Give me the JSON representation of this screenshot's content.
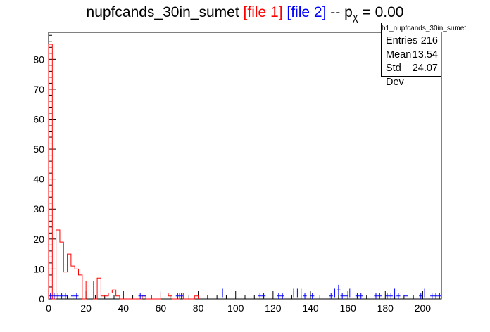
{
  "title": {
    "main": "nupfcands_30in_sumet",
    "file1": "[file 1]",
    "file2": "[file 2]",
    "suffix": "-- p",
    "sub": "χ",
    "value": "= 0.00"
  },
  "stats": {
    "name": "h1_nupfcands_30in_sumet",
    "entries_label": "Entries",
    "entries": "216",
    "mean_label": "Mean",
    "mean": "13.54",
    "stddev_label": "Std Dev",
    "stddev": "24.07"
  },
  "colors": {
    "file1": "#ff0000",
    "file2": "#0000ff",
    "axis": "#000000"
  },
  "chart_data": {
    "type": "bar",
    "xlim": [
      0,
      210
    ],
    "ylim": [
      0,
      89
    ],
    "bin_width": 2,
    "x_ticks": [
      0,
      20,
      40,
      60,
      80,
      100,
      120,
      140,
      160,
      180,
      200
    ],
    "y_ticks": [
      0,
      10,
      20,
      30,
      40,
      50,
      60,
      70,
      80
    ],
    "series": [
      {
        "name": "file 1",
        "style": "step",
        "color": "#ff0000",
        "bin_lo": [
          0,
          2,
          4,
          6,
          8,
          10,
          12,
          14,
          16,
          18,
          20,
          22,
          24,
          26,
          28,
          30,
          32,
          34,
          36,
          38,
          40,
          42,
          44,
          46,
          48,
          50,
          52,
          54,
          56,
          58,
          60,
          62,
          64,
          66,
          68,
          70,
          72,
          74,
          76,
          78
        ],
        "values": [
          85,
          0,
          23,
          19,
          9,
          15,
          11,
          10,
          8,
          0,
          6,
          6,
          0,
          7,
          1,
          1,
          2,
          3,
          1,
          0,
          0,
          0,
          0,
          0,
          0,
          1,
          0,
          0,
          0,
          0,
          2,
          2,
          1,
          0,
          0,
          2,
          0,
          0,
          0,
          1
        ]
      },
      {
        "name": "file 2",
        "style": "points",
        "color": "#0000ff",
        "x": [
          1,
          3,
          5,
          7,
          9,
          13,
          15,
          49,
          51,
          69,
          71,
          93,
          113,
          115,
          123,
          125,
          131,
          133,
          135,
          137,
          141,
          151,
          153,
          155,
          157,
          159,
          161,
          165,
          167,
          175,
          177,
          181,
          183,
          185,
          187,
          191,
          199,
          201,
          205,
          207,
          209
        ],
        "values": [
          1,
          1,
          1,
          1,
          1,
          1,
          1,
          1,
          1,
          1,
          1,
          2,
          1,
          1,
          1,
          1,
          2,
          2,
          2,
          1,
          1,
          1,
          2,
          3,
          1,
          1,
          2,
          1,
          1,
          1,
          1,
          1,
          1,
          2,
          1,
          1,
          1,
          2,
          1,
          1,
          1
        ]
      }
    ]
  }
}
